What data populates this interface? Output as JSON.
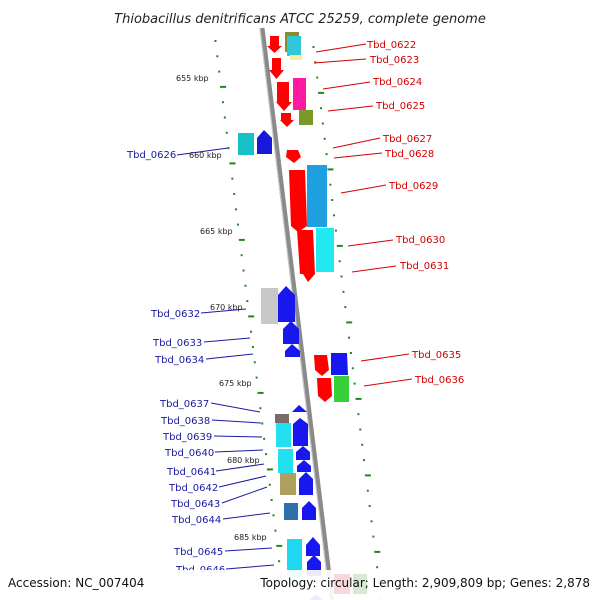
{
  "title": "Thiobacillus denitrificans ATCC 25259, complete genome",
  "accession": "Accession: NC_007404",
  "summary": "Topology: circular; Length: 2,909,809 bp; Genes: 2,878",
  "colors": {
    "forward": "#ff0000",
    "reverse": "#0000ee",
    "tick": "#1e8a1e",
    "backbone": "#888888"
  },
  "kbp_ticks": [
    {
      "label": "655 kbp",
      "x": 655,
      "side": "left"
    },
    {
      "label": "660 kbp",
      "x": 660,
      "side": "left"
    },
    {
      "label": "665 kbp",
      "x": 665,
      "side": "left"
    },
    {
      "label": "670 kbp",
      "x": 670,
      "side": "left"
    },
    {
      "label": "675 kbp",
      "x": 675,
      "side": "left"
    },
    {
      "label": "680 kbp",
      "x": 680,
      "side": "left"
    },
    {
      "label": "685 kbp",
      "x": 685,
      "side": "left"
    }
  ],
  "genes_right": [
    "Tbd_0622",
    "Tbd_0623",
    "Tbd_0624",
    "Tbd_0625",
    "Tbd_0627",
    "Tbd_0628",
    "Tbd_0629",
    "Tbd_0630",
    "Tbd_0631",
    "Tbd_0635",
    "Tbd_0636"
  ],
  "genes_left": [
    "Tbd_0626",
    "Tbd_0632",
    "Tbd_0633",
    "Tbd_0634",
    "Tbd_0637",
    "Tbd_0638",
    "Tbd_0639",
    "Tbd_0640",
    "Tbd_0641",
    "Tbd_0642",
    "Tbd_0643",
    "Tbd_0644",
    "Tbd_0645",
    "Tbd_0646"
  ]
}
